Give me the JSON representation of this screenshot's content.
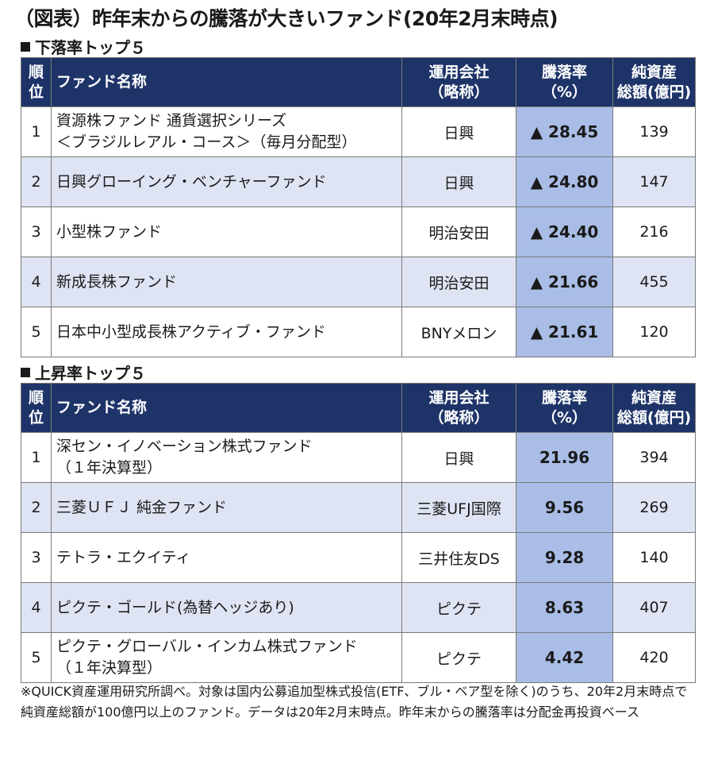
{
  "title": "（図表）昨年末からの騰落が大きいファンド(20年2月末時点)",
  "sections": [
    {
      "label": "下落率トップ５",
      "headers": {
        "rank": [
          "順",
          "位"
        ],
        "name": "ファンド名称",
        "company": [
          "運用会社",
          "（略称）"
        ],
        "rate": [
          "騰落率",
          "（%）"
        ],
        "assets": [
          "純資産",
          "総額(億円)"
        ]
      },
      "rows": [
        {
          "rank": "1",
          "name": [
            "資源株ファンド 通貨選択シリーズ",
            "＜ブラジルレアル・コース＞（毎月分配型）"
          ],
          "company": "日興",
          "rate": "▲ 28.45",
          "assets": "139"
        },
        {
          "rank": "2",
          "name": [
            "日興グローイング・ベンチャーファンド"
          ],
          "company": "日興",
          "rate": "▲ 24.80",
          "assets": "147"
        },
        {
          "rank": "3",
          "name": [
            "小型株ファンド"
          ],
          "company": "明治安田",
          "rate": "▲ 24.40",
          "assets": "216"
        },
        {
          "rank": "4",
          "name": [
            "新成長株ファンド"
          ],
          "company": "明治安田",
          "rate": "▲ 21.66",
          "assets": "455"
        },
        {
          "rank": "5",
          "name": [
            "日本中小型成長株アクティブ・ファンド"
          ],
          "company": "BNYメロン",
          "rate": "▲ 21.61",
          "assets": "120"
        }
      ]
    },
    {
      "label": "上昇率トップ５",
      "headers": {
        "rank": [
          "順",
          "位"
        ],
        "name": "ファンド名称",
        "company": [
          "運用会社",
          "（略称）"
        ],
        "rate": [
          "騰落率",
          "（%）"
        ],
        "assets": [
          "純資産",
          "総額(億円)"
        ]
      },
      "rows": [
        {
          "rank": "1",
          "name": [
            "深セン・イノベーション株式ファンド",
            "（１年決算型）"
          ],
          "company": "日興",
          "rate": "21.96",
          "assets": "394"
        },
        {
          "rank": "2",
          "name": [
            "三菱ＵＦＪ 純金ファンド"
          ],
          "company": "三菱UFJ国際",
          "rate": "9.56",
          "assets": "269"
        },
        {
          "rank": "3",
          "name": [
            "テトラ・エクイティ"
          ],
          "company": "三井住友DS",
          "rate": "9.28",
          "assets": "140"
        },
        {
          "rank": "4",
          "name": [
            "ピクテ・ゴールド(為替ヘッジあり)"
          ],
          "company": "ピクテ",
          "rate": "8.63",
          "assets": "407"
        },
        {
          "rank": "5",
          "name": [
            "ピクテ・グローバル・インカム株式ファンド",
            "（１年決算型）"
          ],
          "company": "ピクテ",
          "rate": "4.42",
          "assets": "420"
        }
      ]
    }
  ],
  "note": "※QUICK資産運用研究所調べ。対象は国内公募追加型株式投信(ETF、ブル・ベア型を除く)のうち、20年2月末時点で純資産総額が100億円以上のファンド。データは20年2月末時点。昨年末からの騰落率は分配金再投資ベース"
}
